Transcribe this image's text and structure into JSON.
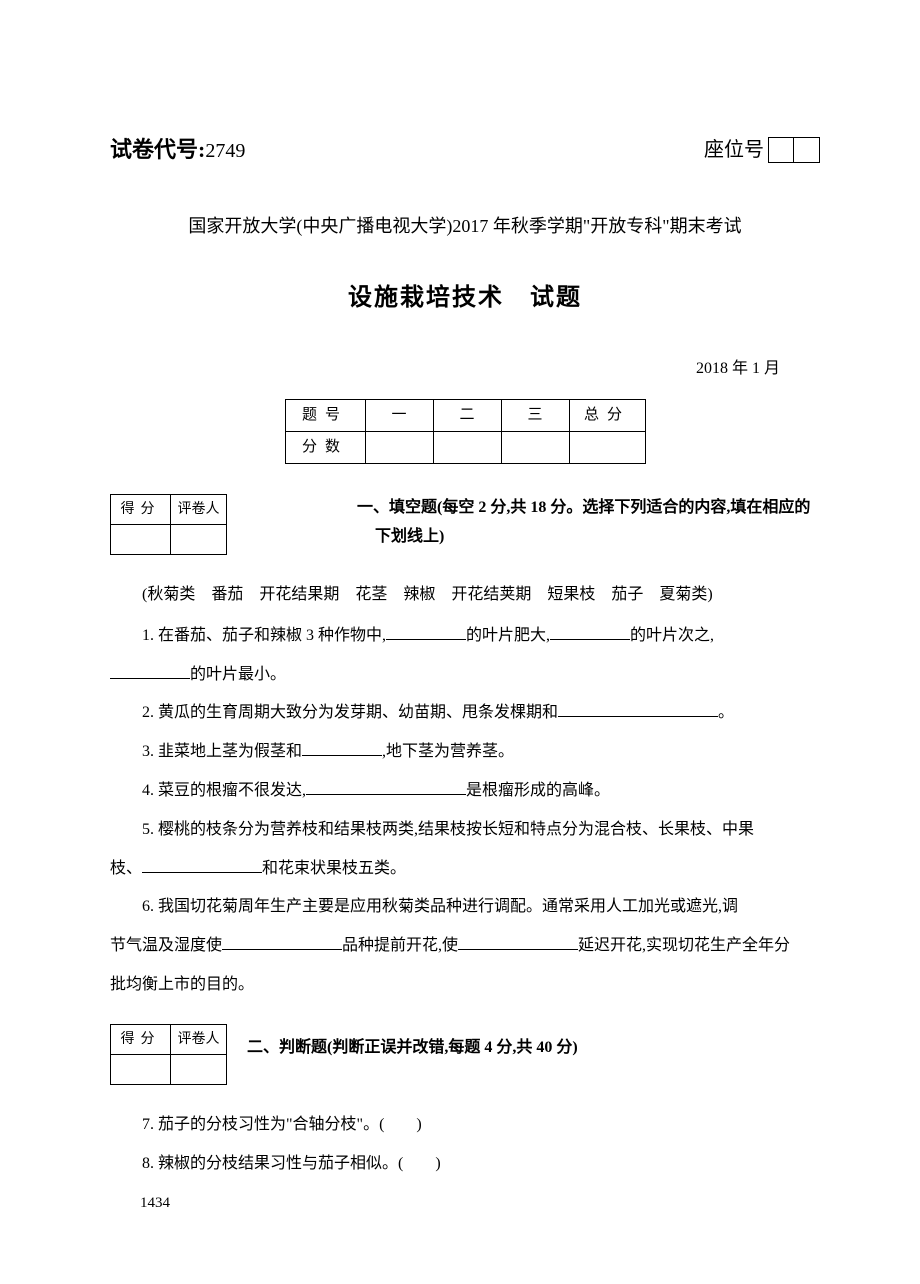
{
  "header": {
    "exam_code_label": "试卷代号:",
    "exam_code_num": "2749",
    "seat_label": "座位号"
  },
  "university_line": "国家开放大学(中央广播电视大学)2017 年秋季学期\"开放专科\"期末考试",
  "exam_title": "设施栽培技术　试题",
  "date": "2018 年 1 月",
  "score_table": {
    "row1": {
      "label": "题号",
      "c1": "一",
      "c2": "二",
      "c3": "三",
      "total": "总分"
    },
    "row2": {
      "label": "分数",
      "c1": "",
      "c2": "",
      "c3": "",
      "total": ""
    }
  },
  "grader": {
    "col1": "得分",
    "col2": "评卷人"
  },
  "section1": {
    "title": "一、填空题(每空 2 分,共 18 分。选择下列适合的内容,填在相应的",
    "title_sub": "下划线上)",
    "word_bank": "(秋菊类　番茄　开花结果期　花茎　辣椒　开花结荚期　短果枝　茄子　夏菊类)",
    "q1_a": "1. 在番茄、茄子和辣椒 3 种作物中,",
    "q1_b": "的叶片肥大,",
    "q1_c": "的叶片次之,",
    "q1_d": "的叶片最小。",
    "q2_a": "2. 黄瓜的生育周期大致分为发芽期、幼苗期、甩条发棵期和",
    "q2_b": "。",
    "q3_a": "3. 韭菜地上茎为假茎和",
    "q3_b": ",地下茎为营养茎。",
    "q4_a": "4. 菜豆的根瘤不很发达,",
    "q4_b": "是根瘤形成的高峰。",
    "q5_a": "5. 樱桃的枝条分为营养枝和结果枝两类,结果枝按长短和特点分为混合枝、长果枝、中果",
    "q5_b": "枝、",
    "q5_c": "和花束状果枝五类。",
    "q6_a": "6. 我国切花菊周年生产主要是应用秋菊类品种进行调配。通常采用人工加光或遮光,调",
    "q6_b": "节气温及湿度使",
    "q6_c": "品种提前开花,使",
    "q6_d": "延迟开花,实现切花生产全年分",
    "q6_e": "批均衡上市的目的。"
  },
  "section2": {
    "title": "二、判断题(判断正误并改错,每题 4 分,共 40 分)",
    "q7": "7. 茄子的分枝习性为\"合轴分枝\"。(　　)",
    "q8": "8. 辣椒的分枝结果习性与茄子相似。(　　)"
  },
  "page_num": "1434"
}
